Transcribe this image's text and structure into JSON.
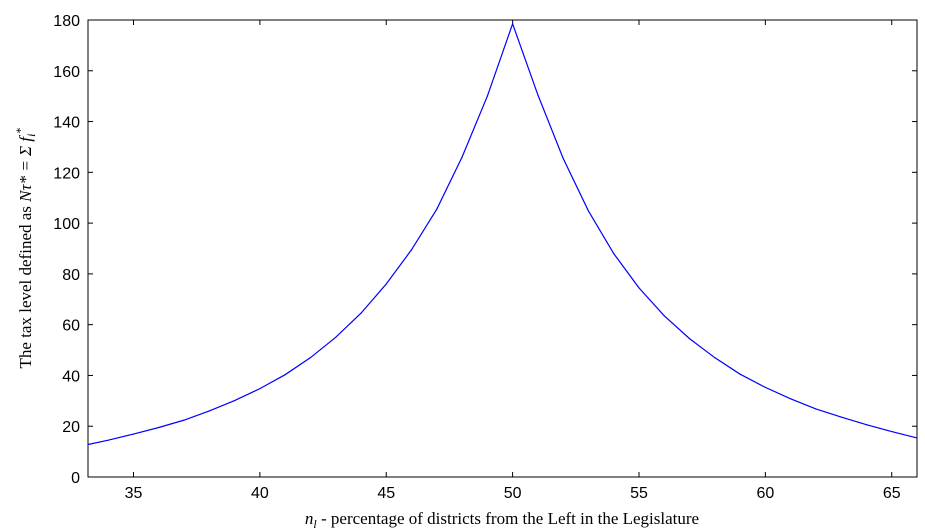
{
  "chart_data": {
    "type": "line",
    "title": "",
    "xlabel": "n_l - percentage of districts from the Left in the Legislature",
    "xlabel_parts": {
      "symbol": "n",
      "subscript": "l",
      "rest": " - percentage of districts from the Left in the Legislature"
    },
    "ylabel": "The tax level defined as Nτ* = Σ f_i*",
    "ylabel_parts": {
      "prefix": "The tax level defined as ",
      "math": "Nτ* = Σ f",
      "sub": "i",
      "sup": "*"
    },
    "xlim": [
      33.2,
      66
    ],
    "ylim": [
      0,
      180
    ],
    "xticks": [
      "35",
      "40",
      "45",
      "50",
      "55",
      "60",
      "65"
    ],
    "yticks": [
      "0",
      "20",
      "40",
      "60",
      "80",
      "100",
      "120",
      "140",
      "160",
      "180"
    ],
    "grid": false,
    "series_color": "#0000ff",
    "series": [
      {
        "x": [
          33.2,
          34,
          35,
          36,
          37,
          38,
          39,
          40,
          41,
          42,
          43,
          44,
          45,
          46,
          47,
          48,
          49,
          50,
          51,
          52,
          53,
          54,
          55,
          56,
          57,
          58,
          59,
          60,
          61,
          62,
          63,
          64,
          65,
          66
        ],
        "y": [
          12.8,
          14.5,
          16.9,
          19.5,
          22.4,
          26.0,
          30.1,
          34.8,
          40.3,
          47.0,
          55.0,
          64.5,
          76.0,
          89.5,
          105.5,
          126.0,
          150.0,
          178.5,
          150.5,
          125.5,
          104.8,
          88.0,
          74.5,
          63.5,
          54.5,
          47.0,
          40.5,
          35.3,
          30.8,
          26.8,
          23.6,
          20.6,
          17.9,
          15.4
        ]
      }
    ]
  }
}
